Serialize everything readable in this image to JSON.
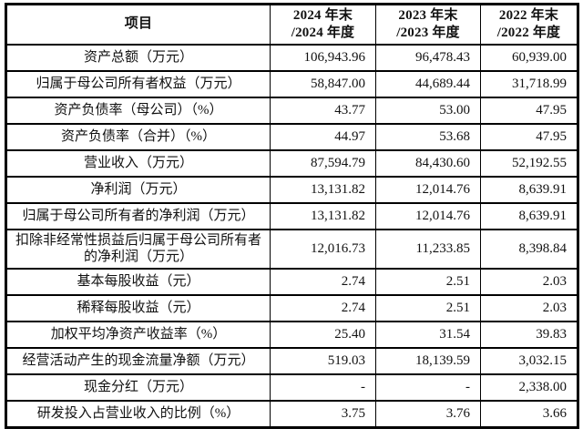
{
  "colors": {
    "background": "#ffffff",
    "border": "#000000",
    "text": "#111111"
  },
  "table": {
    "header": {
      "item_label": "项目",
      "year_columns": [
        {
          "line1": "2024 年末",
          "line2": "/2024 年度"
        },
        {
          "line1": "2023 年末",
          "line2": "/2023 年度"
        },
        {
          "line1": "2022 年末",
          "line2": "/2022 年度"
        }
      ]
    },
    "rows": [
      {
        "item": "资产总额（万元）",
        "values": [
          "106,943.96",
          "96,478.43",
          "60,939.00"
        ]
      },
      {
        "item": "归属于母公司所有者权益（万元）",
        "values": [
          "58,847.00",
          "44,689.44",
          "31,718.99"
        ]
      },
      {
        "item": "资产负债率（母公司）（%）",
        "values": [
          "43.77",
          "53.00",
          "47.95"
        ]
      },
      {
        "item": "资产负债率（合并）（%）",
        "values": [
          "44.97",
          "53.68",
          "47.95"
        ]
      },
      {
        "item": "营业收入（万元）",
        "values": [
          "87,594.79",
          "84,430.60",
          "52,192.55"
        ]
      },
      {
        "item": "净利润（万元）",
        "values": [
          "13,131.82",
          "12,014.76",
          "8,639.91"
        ]
      },
      {
        "item": "归属于母公司所有者的净利润（万元）",
        "values": [
          "13,131.82",
          "12,014.76",
          "8,639.91"
        ]
      },
      {
        "item": "扣除非经常性损益后归属于母公司所有者的净利润（万元）",
        "values": [
          "12,016.73",
          "11,233.85",
          "8,398.84"
        ]
      },
      {
        "item": "基本每股收益（元）",
        "values": [
          "2.74",
          "2.51",
          "2.03"
        ]
      },
      {
        "item": "稀释每股收益（元）",
        "values": [
          "2.74",
          "2.51",
          "2.03"
        ]
      },
      {
        "item": "加权平均净资产收益率（%）",
        "values": [
          "25.40",
          "31.54",
          "39.83"
        ]
      },
      {
        "item": "经营活动产生的现金流量净额（万元）",
        "values": [
          "519.03",
          "18,139.59",
          "3,032.15"
        ]
      },
      {
        "item": "现金分红（万元）",
        "values": [
          "-",
          "-",
          "2,338.00"
        ]
      },
      {
        "item": "研发投入占营业收入的比例（%）",
        "values": [
          "3.75",
          "3.76",
          "3.66"
        ]
      }
    ]
  }
}
